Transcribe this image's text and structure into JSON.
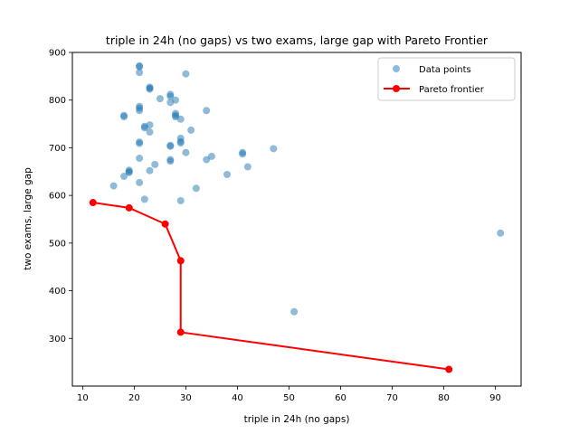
{
  "chart_data": {
    "type": "scatter",
    "title": "triple in 24h (no gaps) vs two exams, large gap with Pareto Frontier",
    "xlabel": "triple in 24h (no gaps)",
    "ylabel": "two exams, large gap",
    "xlim": [
      8,
      95
    ],
    "ylim": [
      200,
      900
    ],
    "x_ticks": [
      10,
      20,
      30,
      40,
      50,
      60,
      70,
      80,
      90
    ],
    "y_ticks": [
      300,
      400,
      500,
      600,
      700,
      800,
      900
    ],
    "grid": false,
    "legend_position": "top-right",
    "series": [
      {
        "name": "Data points",
        "kind": "scatter",
        "color": "#1f77b4",
        "points": [
          [
            21,
            872
          ],
          [
            21,
            870
          ],
          [
            21,
            858
          ],
          [
            30,
            855
          ],
          [
            23,
            827
          ],
          [
            23,
            825
          ],
          [
            23,
            823
          ],
          [
            27,
            812
          ],
          [
            27,
            808
          ],
          [
            28,
            800
          ],
          [
            27,
            795
          ],
          [
            25,
            803
          ],
          [
            21,
            787
          ],
          [
            21,
            783
          ],
          [
            21,
            778
          ],
          [
            34,
            778
          ],
          [
            28,
            772
          ],
          [
            28,
            768
          ],
          [
            28,
            765
          ],
          [
            29,
            760
          ],
          [
            18,
            768
          ],
          [
            18,
            765
          ],
          [
            23,
            748
          ],
          [
            22,
            745
          ],
          [
            22,
            742
          ],
          [
            23,
            733
          ],
          [
            31,
            737
          ],
          [
            29,
            720
          ],
          [
            29,
            713
          ],
          [
            29,
            710
          ],
          [
            21,
            712
          ],
          [
            21,
            709
          ],
          [
            27,
            705
          ],
          [
            27,
            703
          ],
          [
            47,
            698
          ],
          [
            41,
            690
          ],
          [
            41,
            687
          ],
          [
            30,
            690
          ],
          [
            35,
            682
          ],
          [
            34,
            675
          ],
          [
            21,
            678
          ],
          [
            27,
            675
          ],
          [
            27,
            672
          ],
          [
            24,
            665
          ],
          [
            42,
            660
          ],
          [
            23,
            652
          ],
          [
            19,
            653
          ],
          [
            19,
            650
          ],
          [
            19,
            648
          ],
          [
            18,
            640
          ],
          [
            38,
            644
          ],
          [
            21,
            627
          ],
          [
            16,
            620
          ],
          [
            32,
            615
          ],
          [
            22,
            592
          ],
          [
            29,
            589
          ],
          [
            91,
            521
          ],
          [
            51,
            356
          ]
        ]
      },
      {
        "name": "Pareto frontier",
        "kind": "line",
        "color": "#ff0000",
        "points": [
          [
            12,
            585
          ],
          [
            19,
            574
          ],
          [
            26,
            540
          ],
          [
            29,
            463
          ],
          [
            29,
            313
          ],
          [
            81,
            235
          ]
        ]
      }
    ]
  }
}
